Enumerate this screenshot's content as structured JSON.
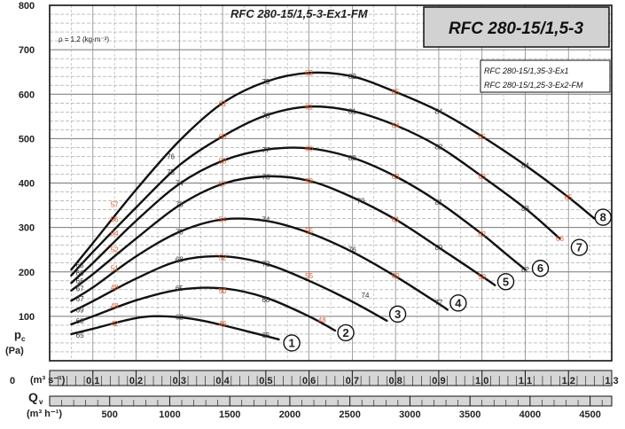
{
  "header": {
    "subtitle": "RFC 280-15/1,5-3-Ex1-FM",
    "title": "RFC 280-15/1,5-3",
    "density": "ρ = 1,2 (kg·m⁻³)",
    "legend": [
      "RFC 280-15/1,35-3-Ex1",
      "RFC 280-15/1,25-3-Ex2-FM"
    ]
  },
  "axis_labels": {
    "y_main": "p",
    "y_sub": "c",
    "y_unit": "(Pa)",
    "x_flow_unit": "(m³ s⁻¹)",
    "x_main": "Q",
    "x_sub": "v",
    "x_hour_unit": "(m³ h⁻¹)"
  },
  "chart_data": {
    "type": "line",
    "title": "RFC 280-15/1,5-3",
    "xlabel": "Qv (m³ s⁻¹)",
    "ylabel": "pc (Pa)",
    "xlim": [
      0,
      1.3
    ],
    "ylim": [
      0,
      800
    ],
    "x_ticks": [
      "0",
      "0,1",
      "0,2",
      "0,3",
      "0,4",
      "0,5",
      "0,6",
      "0,7",
      "0,8",
      "0,9",
      "1,0",
      "1,1",
      "1,2",
      "1,3"
    ],
    "x_tick_values": [
      0,
      0.1,
      0.2,
      0.3,
      0.4,
      0.5,
      0.6,
      0.7,
      0.8,
      0.9,
      1.0,
      1.1,
      1.2,
      1.3
    ],
    "y_ticks": [
      "100",
      "200",
      "300",
      "400",
      "500",
      "600",
      "700",
      "800"
    ],
    "y_tick_values": [
      100,
      200,
      300,
      400,
      500,
      600,
      700,
      800
    ],
    "x2_ticks": [
      "500",
      "1000",
      "1500",
      "2000",
      "2500",
      "3000",
      "3500",
      "4000",
      "4500"
    ],
    "x2_tick_values": [
      500,
      1000,
      1500,
      2000,
      2500,
      3000,
      3500,
      4000,
      4500
    ],
    "grid": true,
    "series": [
      {
        "name": "1",
        "x": [
          0.05,
          0.1,
          0.2,
          0.27,
          0.35,
          0.45,
          0.53
        ],
        "y": [
          60,
          72,
          96,
          100,
          91,
          68,
          48
        ]
      },
      {
        "name": "2",
        "x": [
          0.05,
          0.1,
          0.2,
          0.3,
          0.4,
          0.5,
          0.6,
          0.66
        ],
        "y": [
          82,
          100,
          136,
          160,
          163,
          142,
          100,
          68
        ]
      },
      {
        "name": "3",
        "x": [
          0.05,
          0.1,
          0.2,
          0.3,
          0.4,
          0.5,
          0.6,
          0.7,
          0.78
        ],
        "y": [
          110,
          134,
          185,
          225,
          235,
          218,
          180,
          133,
          90
        ]
      },
      {
        "name": "4",
        "x": [
          0.05,
          0.1,
          0.2,
          0.3,
          0.4,
          0.5,
          0.6,
          0.7,
          0.8,
          0.9,
          0.92
        ],
        "y": [
          135,
          165,
          235,
          290,
          318,
          315,
          288,
          245,
          190,
          128,
          115
        ]
      },
      {
        "name": "5",
        "x": [
          0.05,
          0.1,
          0.2,
          0.3,
          0.4,
          0.5,
          0.6,
          0.7,
          0.8,
          0.9,
          1.0,
          1.03
        ],
        "y": [
          158,
          195,
          275,
          350,
          398,
          415,
          405,
          368,
          318,
          255,
          190,
          170
        ]
      },
      {
        "name": "6",
        "x": [
          0.05,
          0.1,
          0.2,
          0.3,
          0.4,
          0.5,
          0.6,
          0.7,
          0.8,
          0.9,
          1.0,
          1.05,
          1.1
        ],
        "y": [
          175,
          220,
          315,
          398,
          450,
          475,
          478,
          457,
          415,
          357,
          285,
          245,
          205
        ]
      },
      {
        "name": "7",
        "x": [
          0.05,
          0.1,
          0.2,
          0.3,
          0.4,
          0.5,
          0.6,
          0.7,
          0.8,
          0.9,
          1.0,
          1.1,
          1.18
        ],
        "y": [
          192,
          245,
          345,
          440,
          505,
          552,
          572,
          562,
          530,
          482,
          415,
          343,
          275
        ]
      },
      {
        "name": "8",
        "x": [
          0.05,
          0.1,
          0.2,
          0.3,
          0.4,
          0.5,
          0.6,
          0.7,
          0.8,
          0.9,
          1.0,
          1.1,
          1.2,
          1.26
        ],
        "y": [
          205,
          265,
          385,
          495,
          580,
          628,
          648,
          640,
          605,
          562,
          505,
          440,
          368,
          320
        ]
      }
    ],
    "efficiency_labels": [
      {
        "t": "65",
        "x": 0.07,
        "y": 58,
        "c": "#333333"
      },
      {
        "t": "42",
        "x": 0.15,
        "y": 84,
        "c": "#e05a2a"
      },
      {
        "t": "62",
        "x": 0.3,
        "y": 99,
        "c": "#333333"
      },
      {
        "t": "46",
        "x": 0.4,
        "y": 84,
        "c": "#e05a2a"
      },
      {
        "t": "65",
        "x": 0.5,
        "y": 58,
        "c": "#333333"
      },
      {
        "t": "68",
        "x": 0.07,
        "y": 90,
        "c": "#333333"
      },
      {
        "t": "48",
        "x": 0.15,
        "y": 124,
        "c": "#e05a2a"
      },
      {
        "t": "65",
        "x": 0.3,
        "y": 164,
        "c": "#333333"
      },
      {
        "t": "50",
        "x": 0.4,
        "y": 158,
        "c": "#e05a2a"
      },
      {
        "t": "68",
        "x": 0.5,
        "y": 138,
        "c": "#333333"
      },
      {
        "t": "48",
        "x": 0.63,
        "y": 92,
        "c": "#e05a2a"
      },
      {
        "t": "69",
        "x": 0.07,
        "y": 115,
        "c": "#333333"
      },
      {
        "t": "48",
        "x": 0.15,
        "y": 166,
        "c": "#e05a2a"
      },
      {
        "t": "68",
        "x": 0.3,
        "y": 228,
        "c": "#333333"
      },
      {
        "t": "52",
        "x": 0.4,
        "y": 232,
        "c": "#e05a2a"
      },
      {
        "t": "72",
        "x": 0.5,
        "y": 218,
        "c": "#333333"
      },
      {
        "t": "55",
        "x": 0.6,
        "y": 192,
        "c": "#e05a2a"
      },
      {
        "t": "74",
        "x": 0.73,
        "y": 148,
        "c": "#333333"
      },
      {
        "t": "67",
        "x": 0.07,
        "y": 140,
        "c": "#333333"
      },
      {
        "t": "51",
        "x": 0.15,
        "y": 208,
        "c": "#e05a2a"
      },
      {
        "t": "70",
        "x": 0.3,
        "y": 290,
        "c": "#333333"
      },
      {
        "t": "54",
        "x": 0.4,
        "y": 318,
        "c": "#e05a2a"
      },
      {
        "t": "74",
        "x": 0.5,
        "y": 318,
        "c": "#333333"
      },
      {
        "t": "55",
        "x": 0.6,
        "y": 292,
        "c": "#e05a2a"
      },
      {
        "t": "76",
        "x": 0.7,
        "y": 250,
        "c": "#333333"
      },
      {
        "t": "60",
        "x": 0.8,
        "y": 192,
        "c": "#e05a2a"
      },
      {
        "t": "77",
        "x": 0.9,
        "y": 132,
        "c": "#333333"
      },
      {
        "t": "67",
        "x": 0.07,
        "y": 163,
        "c": "#333333"
      },
      {
        "t": "52",
        "x": 0.15,
        "y": 250,
        "c": "#e05a2a"
      },
      {
        "t": "73",
        "x": 0.3,
        "y": 352,
        "c": "#333333"
      },
      {
        "t": "57",
        "x": 0.4,
        "y": 398,
        "c": "#e05a2a"
      },
      {
        "t": "76",
        "x": 0.5,
        "y": 414,
        "c": "#333333"
      },
      {
        "t": "59",
        "x": 0.6,
        "y": 405,
        "c": "#e05a2a"
      },
      {
        "t": "79",
        "x": 0.72,
        "y": 360,
        "c": "#333333"
      },
      {
        "t": "61",
        "x": 0.8,
        "y": 318,
        "c": "#e05a2a"
      },
      {
        "t": "80",
        "x": 0.9,
        "y": 255,
        "c": "#333333"
      },
      {
        "t": "59",
        "x": 1.0,
        "y": 190,
        "c": "#e05a2a"
      },
      {
        "t": "66",
        "x": 0.07,
        "y": 180,
        "c": "#333333"
      },
      {
        "t": "54",
        "x": 0.15,
        "y": 287,
        "c": "#e05a2a"
      },
      {
        "t": "74",
        "x": 0.3,
        "y": 400,
        "c": "#333333"
      },
      {
        "t": "58",
        "x": 0.4,
        "y": 450,
        "c": "#e05a2a"
      },
      {
        "t": "77",
        "x": 0.5,
        "y": 475,
        "c": "#333333"
      },
      {
        "t": "60",
        "x": 0.6,
        "y": 478,
        "c": "#e05a2a"
      },
      {
        "t": "80",
        "x": 0.7,
        "y": 457,
        "c": "#333333"
      },
      {
        "t": "63",
        "x": 0.8,
        "y": 415,
        "c": "#e05a2a"
      },
      {
        "t": "81",
        "x": 0.9,
        "y": 357,
        "c": "#333333"
      },
      {
        "t": "62",
        "x": 1.0,
        "y": 285,
        "c": "#e05a2a"
      },
      {
        "t": "82",
        "x": 1.1,
        "y": 205,
        "c": "#333333"
      },
      {
        "t": "66",
        "x": 0.07,
        "y": 198,
        "c": "#333333"
      },
      {
        "t": "56",
        "x": 0.15,
        "y": 318,
        "c": "#e05a2a"
      },
      {
        "t": "75",
        "x": 0.28,
        "y": 425,
        "c": "#333333"
      },
      {
        "t": "60",
        "x": 0.4,
        "y": 505,
        "c": "#e05a2a"
      },
      {
        "t": "78",
        "x": 0.5,
        "y": 552,
        "c": "#333333"
      },
      {
        "t": "61",
        "x": 0.6,
        "y": 572,
        "c": "#e05a2a"
      },
      {
        "t": "81",
        "x": 0.7,
        "y": 562,
        "c": "#333333"
      },
      {
        "t": "64",
        "x": 0.8,
        "y": 530,
        "c": "#e05a2a"
      },
      {
        "t": "82",
        "x": 0.9,
        "y": 482,
        "c": "#333333"
      },
      {
        "t": "63",
        "x": 1.0,
        "y": 415,
        "c": "#e05a2a"
      },
      {
        "t": "83",
        "x": 1.1,
        "y": 343,
        "c": "#333333"
      },
      {
        "t": "66",
        "x": 1.18,
        "y": 275,
        "c": "#e05a2a"
      },
      {
        "t": "65",
        "x": 0.07,
        "y": 215,
        "c": "#333333"
      },
      {
        "t": "57",
        "x": 0.15,
        "y": 352,
        "c": "#e05a2a"
      },
      {
        "t": "76",
        "x": 0.28,
        "y": 460,
        "c": "#333333"
      },
      {
        "t": "61",
        "x": 0.4,
        "y": 580,
        "c": "#e05a2a"
      },
      {
        "t": "79",
        "x": 0.5,
        "y": 628,
        "c": "#333333"
      },
      {
        "t": "62",
        "x": 0.6,
        "y": 648,
        "c": "#e05a2a"
      },
      {
        "t": "82",
        "x": 0.7,
        "y": 640,
        "c": "#333333"
      },
      {
        "t": "65",
        "x": 0.8,
        "y": 605,
        "c": "#e05a2a"
      },
      {
        "t": "84",
        "x": 0.9,
        "y": 562,
        "c": "#333333"
      },
      {
        "t": "65",
        "x": 1.0,
        "y": 505,
        "c": "#e05a2a"
      },
      {
        "t": "84",
        "x": 1.1,
        "y": 440,
        "c": "#333333"
      },
      {
        "t": "65",
        "x": 1.2,
        "y": 368,
        "c": "#e05a2a"
      }
    ],
    "curve_markers": [
      {
        "t": "1",
        "x": 0.56,
        "y": 40
      },
      {
        "t": "2",
        "x": 0.685,
        "y": 63
      },
      {
        "t": "3",
        "x": 0.805,
        "y": 105
      },
      {
        "t": "4",
        "x": 0.945,
        "y": 130
      },
      {
        "t": "5",
        "x": 1.055,
        "y": 178
      },
      {
        "t": "6",
        "x": 1.135,
        "y": 208
      },
      {
        "t": "7",
        "x": 1.225,
        "y": 255
      },
      {
        "t": "8",
        "x": 1.28,
        "y": 323
      }
    ]
  }
}
